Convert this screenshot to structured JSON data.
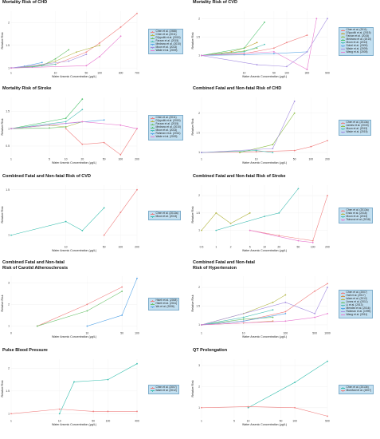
{
  "chart_data": [
    {
      "type": "line",
      "title": "Mortality Risk of CHD",
      "xlabel": "Water Arsenic Concentration (µg/L)",
      "ylabel": "Relative Risk",
      "x_ticks": [
        1,
        10,
        50,
        100,
        300,
        700
      ],
      "y_ticks": [
        1,
        1.5,
        2
      ],
      "ylim": [
        0.95,
        2.25
      ],
      "series": [
        {
          "name": "Chen et al. (1988)",
          "color": "#f08080",
          "x": [
            1,
            10,
            50,
            100,
            300,
            700
          ],
          "y": [
            1,
            1.08,
            1.35,
            1.55,
            1.9,
            2.2
          ]
        },
        {
          "name": "Chen et al. (2011)",
          "color": "#b5b84a",
          "x": [
            1,
            3,
            10,
            30,
            100
          ],
          "y": [
            1,
            1.02,
            1.15,
            1.35,
            1.5
          ]
        },
        {
          "name": "D'Ippoliti et al. (2015)",
          "color": "#6cc26c",
          "x": [
            1,
            5,
            10,
            20
          ],
          "y": [
            1,
            1.05,
            1.2,
            1.4
          ]
        },
        {
          "name": "Farzan et al. (2015)",
          "color": "#4fc1b8",
          "x": [
            1,
            3,
            5,
            10
          ],
          "y": [
            1,
            1.02,
            1.05,
            1.08
          ]
        },
        {
          "name": "Medrano et al. (2010)",
          "color": "#5aa7e8",
          "x": [
            1,
            2,
            5
          ],
          "y": [
            1,
            1.04,
            1.12
          ]
        },
        {
          "name": "Moon et al. (2013)",
          "color": "#a48de0",
          "x": [
            1,
            20,
            50
          ],
          "y": [
            1,
            1.15,
            1.3
          ]
        },
        {
          "name": "Wade et al. (2009)",
          "color": "#e87ad0",
          "x": [
            1,
            50,
            100,
            300
          ],
          "y": [
            1,
            1.05,
            1.25,
            1.7
          ]
        }
      ]
    },
    {
      "type": "line",
      "title": "Mortality Risk of CVD",
      "xlabel": "Water Arsenic Concentration (µg/L)",
      "ylabel": "Relative Risk",
      "x_ticks": [
        10,
        50,
        100,
        300,
        900
      ],
      "y_ticks": [
        1,
        1.5,
        2
      ],
      "ylim": [
        0.6,
        2.2
      ],
      "series": [
        {
          "name": "Chen et al. (2011)",
          "color": "#f08080",
          "x": [
            1,
            10,
            50,
            100,
            300
          ],
          "y": [
            1,
            1.05,
            1.2,
            1.35,
            1.55
          ]
        },
        {
          "name": "D'Ippoliti et al. (2015)",
          "color": "#c2a63c",
          "x": [
            1,
            5,
            10,
            20
          ],
          "y": [
            1,
            1.1,
            1.2,
            1.35
          ]
        },
        {
          "name": "Farzan et al. (2015)",
          "color": "#8fc04a",
          "x": [
            1,
            3,
            10,
            20
          ],
          "y": [
            1,
            1.05,
            1.12,
            1.2
          ]
        },
        {
          "name": "Medrano et al. (2010)",
          "color": "#4cc26c",
          "x": [
            1,
            10,
            30
          ],
          "y": [
            1,
            1.2,
            1.9
          ]
        },
        {
          "name": "Moon et al. (2013)",
          "color": "#4fc1b8",
          "x": [
            1,
            10,
            30
          ],
          "y": [
            1,
            1.1,
            1.3
          ]
        },
        {
          "name": "Sohel et al. (2009)",
          "color": "#5aa7e8",
          "x": [
            1,
            10,
            50,
            300
          ],
          "y": [
            1,
            1.02,
            1.05,
            1.1
          ]
        },
        {
          "name": "Wade et al. (2009)",
          "color": "#a48de0",
          "x": [
            1,
            20,
            100,
            300,
            900
          ],
          "y": [
            1,
            0.75,
            0.7,
            1.1,
            2.0
          ]
        },
        {
          "name": "Wang et al. (2005)",
          "color": "#e87ad0",
          "x": [
            1,
            50,
            300,
            500
          ],
          "y": [
            1,
            1.1,
            0.62,
            2.0
          ]
        }
      ]
    },
    {
      "type": "line",
      "title": "Mortality Risk of Stroke",
      "xlabel": "Water Arsenic Concentration (µg/L)",
      "ylabel": "Relative Risk",
      "x_ticks": [
        1,
        5,
        10,
        20,
        50,
        100,
        200
      ],
      "y_ticks": [
        0.5,
        1,
        1.5
      ],
      "ylim": [
        0.2,
        1.9
      ],
      "series": [
        {
          "name": "Chen et al. (2011)",
          "color": "#f08080",
          "x": [
            10,
            20,
            50,
            100,
            200
          ],
          "y": [
            1,
            0.55,
            0.6,
            0.25,
            1.0
          ]
        },
        {
          "name": "D'Ippoliti et al. (2015)",
          "color": "#b5b84a",
          "x": [
            1,
            5,
            10,
            20
          ],
          "y": [
            1,
            1.1,
            1.05,
            1.2
          ]
        },
        {
          "name": "Farzan et al. (2015)",
          "color": "#6cc26c",
          "x": [
            1,
            5,
            10
          ],
          "y": [
            1,
            1.02,
            1.05
          ]
        },
        {
          "name": "Medrano et al. (2010)",
          "color": "#4cc26c",
          "x": [
            1,
            10,
            20
          ],
          "y": [
            1,
            1.3,
            1.85
          ]
        },
        {
          "name": "Moon et al. (2013)",
          "color": "#4fc1b8",
          "x": [
            1,
            10,
            20
          ],
          "y": [
            1,
            1.2,
            1.55
          ]
        },
        {
          "name": "Rahman et al. (2014)",
          "color": "#5aa7e8",
          "x": [
            1,
            10,
            50
          ],
          "y": [
            1,
            1.15,
            1.25
          ]
        },
        {
          "name": "Wade et al. (2009)",
          "color": "#e87ad0",
          "x": [
            1,
            20,
            100,
            200
          ],
          "y": [
            1,
            1.2,
            1.1,
            1.0
          ]
        }
      ]
    },
    {
      "type": "line",
      "title": "Combined Fatal and Non-fatal Risk of CHD",
      "xlabel": "Water Arsenic Concentration (µg/L)",
      "ylabel": "Relative Risk",
      "x_ticks": [
        1,
        10,
        50,
        100,
        200
      ],
      "y_ticks": [
        1,
        1.5,
        2
      ],
      "ylim": [
        0.9,
        2.4
      ],
      "series": [
        {
          "name": "Chen et al. (2013a)",
          "color": "#f08080",
          "x": [
            1,
            10,
            50,
            100,
            200
          ],
          "y": [
            1,
            1.02,
            1.05,
            1.15,
            1.3
          ]
        },
        {
          "name": "James et al. (2015)",
          "color": "#8fc04a",
          "x": [
            5,
            20,
            50
          ],
          "y": [
            1,
            1.2,
            2.0
          ]
        },
        {
          "name": "Moon et al. (2013)",
          "color": "#4fc1b8",
          "x": [
            1,
            10,
            20
          ],
          "y": [
            1,
            1.05,
            1.0
          ]
        },
        {
          "name": "Wade et al. (2015)",
          "color": "#a48de0",
          "x": [
            1,
            20,
            50
          ],
          "y": [
            1,
            1.1,
            2.3
          ]
        }
      ]
    },
    {
      "type": "line",
      "title": "Combined Fatal and Non-fatal Risk of CVD",
      "xlabel": "Water Arsenic Concentration (µg/L)",
      "ylabel": "Relative Risk",
      "x_ticks": [
        10,
        50,
        100,
        200
      ],
      "y_ticks": [
        1,
        1.5
      ],
      "ylim": [
        0.9,
        1.55
      ],
      "series": [
        {
          "name": "Chen et al. (2013a)",
          "color": "#f08080",
          "x": [
            50,
            100,
            200
          ],
          "y": [
            1,
            1.25,
            1.5
          ]
        },
        {
          "name": "Moon et al. (2013)",
          "color": "#3cc0b0",
          "x": [
            1,
            10,
            20,
            50
          ],
          "y": [
            1,
            1.15,
            1.05,
            1.3
          ]
        }
      ]
    },
    {
      "type": "line",
      "title": "Combined Fatal and Non-fatal Risk of Stroke",
      "xlabel": "Water Arsenic Concentration (µg/L)",
      "ylabel": "Relative Risk",
      "x_ticks": [
        0.5,
        1,
        2,
        5,
        10,
        20,
        50,
        100,
        200
      ],
      "y_ticks": [
        1,
        1.5,
        2
      ],
      "ylim": [
        0.6,
        2.3
      ],
      "series": [
        {
          "name": "Chen et al. (2013a)",
          "color": "#f08080",
          "x": [
            5,
            20,
            100,
            200
          ],
          "y": [
            1,
            0.85,
            0.7,
            2.0
          ]
        },
        {
          "name": "Endo et al. (2018)",
          "color": "#b5b84a",
          "x": [
            0.5,
            1,
            2,
            5
          ],
          "y": [
            1,
            1.5,
            1.2,
            1.5
          ]
        },
        {
          "name": "Moon et al. (2013)",
          "color": "#4fc1b8",
          "x": [
            1,
            10,
            20,
            50
          ],
          "y": [
            1,
            1.4,
            1.5,
            2.2
          ]
        },
        {
          "name": "Tsinovoi et al. (2018)",
          "color": "#e87ad0",
          "x": [
            5,
            50,
            100
          ],
          "y": [
            1,
            0.7,
            0.65
          ]
        }
      ]
    },
    {
      "type": "line",
      "title": "Combined Fatal and Non-fatal\nRisk of Carotid Atherosclerosis",
      "xlabel": "Water Arsenic Concentration (µg/L)",
      "ylabel": "Relative Risk",
      "x_ticks": [
        0,
        10,
        50,
        100
      ],
      "y_ticks": [
        1,
        2,
        3
      ],
      "ylim": [
        0.8,
        3.3
      ],
      "series": [
        {
          "name": "Hsieh et al. (2008)",
          "color": "#f08080",
          "x": [
            1,
            10,
            50
          ],
          "y": [
            1,
            2.0,
            2.8
          ]
        },
        {
          "name": "Hsieh et al. (2011)",
          "color": "#6cc26c",
          "x": [
            1,
            10,
            50
          ],
          "y": [
            1,
            1.7,
            2.6
          ]
        },
        {
          "name": "Wu et al. (2006)",
          "color": "#5aa7e8",
          "x": [
            10,
            50,
            100
          ],
          "y": [
            1,
            1.5,
            3.2
          ]
        }
      ]
    },
    {
      "type": "line",
      "title": "Combined Fatal and Non-fatal\nRisk of Hypertension",
      "xlabel": "Water Arsenic Concentration (µg/L)",
      "ylabel": "Relative Risk",
      "x_ticks": [
        1,
        10,
        100,
        500,
        1000
      ],
      "y_ticks": [
        1,
        1.5,
        2
      ],
      "ylim": [
        0.85,
        2.3
      ],
      "series": [
        {
          "name": "Chen et al. (2007)",
          "color": "#f08080",
          "x": [
            1,
            10,
            100,
            500,
            1000
          ],
          "y": [
            1,
            1.1,
            1.35,
            1.9,
            2.1
          ]
        },
        {
          "name": "Hall et al. (2017)",
          "color": "#d4904a",
          "x": [
            1,
            10,
            50
          ],
          "y": [
            1,
            1.05,
            1.1
          ]
        },
        {
          "name": "Islam et al. (2012)",
          "color": "#b5b84a",
          "x": [
            1,
            10,
            50,
            100
          ],
          "y": [
            1,
            1.3,
            1.6,
            1.8
          ]
        },
        {
          "name": "Jones et al. (2011)",
          "color": "#6cc26c",
          "x": [
            1,
            10,
            50
          ],
          "y": [
            1,
            1.15,
            1.2
          ]
        },
        {
          "name": "Li et al. (2013)",
          "color": "#4fc1b8",
          "x": [
            1,
            10,
            50
          ],
          "y": [
            1,
            1.2,
            1.4
          ]
        },
        {
          "name": "Mendez et al. (2016)",
          "color": "#5aa7e8",
          "x": [
            1,
            10,
            100
          ],
          "y": [
            1,
            1.1,
            1.3
          ]
        },
        {
          "name": "Rahman et al. (1999)",
          "color": "#a48de0",
          "x": [
            1,
            100,
            500,
            1000
          ],
          "y": [
            1,
            1.6,
            1.3,
            2.0
          ]
        },
        {
          "name": "Wang et al. (2011)",
          "color": "#e87ad0",
          "x": [
            1,
            100,
            500,
            1000
          ],
          "y": [
            1,
            1.1,
            1.2,
            1.3
          ]
        }
      ]
    },
    {
      "type": "line",
      "title": "Pulse Blood Pressure",
      "xlabel": "Water Arsenic Concentration (µg/L)",
      "ylabel": "Relative Risk",
      "x_ticks": [
        1,
        10,
        50,
        100,
        400
      ],
      "y_ticks": [
        1,
        1.5,
        2
      ],
      "ylim": [
        0.9,
        2.2
      ],
      "series": [
        {
          "name": "Chen et al. (2007)",
          "color": "#f08080",
          "x": [
            1,
            10,
            50,
            100,
            400
          ],
          "y": [
            1,
            1.1,
            1.05,
            1.05,
            1.05
          ]
        },
        {
          "name": "Islam et al. (2012)",
          "color": "#3cc0b0",
          "x": [
            10,
            20,
            100,
            400
          ],
          "y": [
            1,
            1.7,
            1.75,
            2.1
          ]
        }
      ]
    },
    {
      "type": "line",
      "title": "QT Prolongation",
      "xlabel": "Water Arsenic Concentration (µg/L)",
      "ylabel": "Relative Risk",
      "x_ticks": [
        1,
        5,
        10,
        50,
        100,
        500
      ],
      "y_ticks": [
        1,
        2,
        3
      ],
      "ylim": [
        0.5,
        3.3
      ],
      "series": [
        {
          "name": "Chen et al. (2013b)",
          "color": "#3cc0b0",
          "x": [
            10,
            100,
            500
          ],
          "y": [
            1,
            2.2,
            3.2
          ]
        },
        {
          "name": "Mumford et al. (2007)",
          "color": "#f08080",
          "x": [
            1,
            10,
            100,
            500
          ],
          "y": [
            1,
            1.05,
            1.0,
            0.6
          ]
        }
      ]
    }
  ]
}
